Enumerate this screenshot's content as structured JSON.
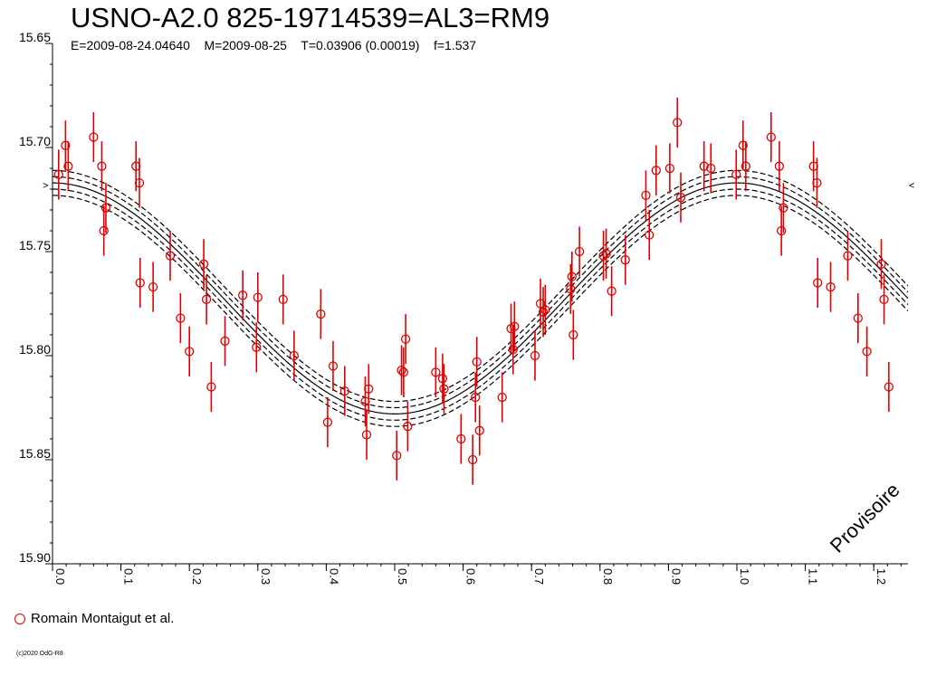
{
  "chart_data": {
    "type": "scatter",
    "title": "USNO-A2.0 825-19714539=AL3=RM9",
    "subtitle": "E=2009-08-24.04640    M=2009-08-25    T=0.03906 (0.00019)    f=1.537",
    "xlabel": "",
    "ylabel": "",
    "xlim": [
      0.0,
      1.25
    ],
    "ylim": [
      15.65,
      15.9
    ],
    "y_inverted": true,
    "x_ticks": [
      "0.0",
      "0.1",
      "0.2",
      "0.3",
      "0.4",
      "0.5",
      "0.6",
      "0.7",
      "0.8",
      "0.9",
      "1.0",
      "1.1",
      "1.2"
    ],
    "y_ticks": [
      "15.65",
      "15.70",
      "15.75",
      "15.80",
      "15.85",
      "15.90"
    ],
    "grid": false,
    "legend_position": "bottom-left",
    "annotation": "Provisoire",
    "fit_curve": {
      "mean": 15.7725,
      "amplitude": 0.0555,
      "max_phase": 1.0,
      "error_bands": [
        0.003,
        0.006
      ]
    },
    "series": [
      {
        "name": "Romain Montaigut et al.",
        "color": "#dd0000",
        "marker": "open-circle",
        "points": [
          [
            0.009,
            15.713,
            0.012
          ],
          [
            0.019,
            15.699,
            0.012
          ],
          [
            0.023,
            15.709,
            0.012
          ],
          [
            0.06,
            15.695,
            0.012
          ],
          [
            0.072,
            15.709,
            0.012
          ],
          [
            0.075,
            15.74,
            0.012
          ],
          [
            0.078,
            15.729,
            0.012
          ],
          [
            0.122,
            15.709,
            0.012
          ],
          [
            0.127,
            15.717,
            0.012
          ],
          [
            0.128,
            15.765,
            0.012
          ],
          [
            0.147,
            15.767,
            0.012
          ],
          [
            0.172,
            15.752,
            0.012
          ],
          [
            0.187,
            15.782,
            0.012
          ],
          [
            0.2,
            15.798,
            0.012
          ],
          [
            0.221,
            15.756,
            0.012
          ],
          [
            0.225,
            15.773,
            0.012
          ],
          [
            0.232,
            15.815,
            0.012
          ],
          [
            0.252,
            15.793,
            0.012
          ],
          [
            0.278,
            15.771,
            0.012
          ],
          [
            0.298,
            15.796,
            0.012
          ],
          [
            0.3,
            15.772,
            0.012
          ],
          [
            0.337,
            15.773,
            0.012
          ],
          [
            0.353,
            15.8,
            0.012
          ],
          [
            0.392,
            15.78,
            0.012
          ],
          [
            0.402,
            15.832,
            0.012
          ],
          [
            0.41,
            15.805,
            0.012
          ],
          [
            0.427,
            15.817,
            0.012
          ],
          [
            0.457,
            15.822,
            0.012
          ],
          [
            0.459,
            15.838,
            0.012
          ],
          [
            0.462,
            15.816,
            0.012
          ],
          [
            0.503,
            15.848,
            0.012
          ],
          [
            0.51,
            15.807,
            0.012
          ],
          [
            0.513,
            15.808,
            0.012
          ],
          [
            0.516,
            15.792,
            0.012
          ],
          [
            0.519,
            15.834,
            0.012
          ],
          [
            0.56,
            15.808,
            0.012
          ],
          [
            0.57,
            15.811,
            0.012
          ],
          [
            0.572,
            15.816,
            0.012
          ],
          [
            0.597,
            15.84,
            0.012
          ],
          [
            0.614,
            15.85,
            0.012
          ],
          [
            0.618,
            15.82,
            0.012
          ],
          [
            0.62,
            15.803,
            0.012
          ],
          [
            0.624,
            15.836,
            0.012
          ],
          [
            0.657,
            15.82,
            0.012
          ],
          [
            0.67,
            15.787,
            0.012
          ],
          [
            0.673,
            15.797,
            0.012
          ],
          [
            0.675,
            15.786,
            0.012
          ],
          [
            0.705,
            15.8,
            0.012
          ],
          [
            0.713,
            15.775,
            0.012
          ],
          [
            0.717,
            15.779,
            0.012
          ],
          [
            0.72,
            15.778,
            0.012
          ],
          [
            0.757,
            15.768,
            0.012
          ],
          [
            0.759,
            15.762,
            0.012
          ],
          [
            0.761,
            15.79,
            0.012
          ],
          [
            0.77,
            15.75,
            0.012
          ],
          [
            0.805,
            15.752,
            0.012
          ],
          [
            0.809,
            15.751,
            0.012
          ],
          [
            0.817,
            15.769,
            0.012
          ],
          [
            0.837,
            15.754,
            0.012
          ],
          [
            0.867,
            15.723,
            0.012
          ],
          [
            0.872,
            15.742,
            0.012
          ],
          [
            0.882,
            15.711,
            0.012
          ],
          [
            0.902,
            15.71,
            0.012
          ],
          [
            0.913,
            15.688,
            0.012
          ],
          [
            0.918,
            15.724,
            0.012
          ],
          [
            0.952,
            15.709,
            0.012
          ],
          [
            0.962,
            15.71,
            0.012
          ],
          [
            0.999,
            15.713,
            0.012
          ],
          [
            1.009,
            15.699,
            0.012
          ],
          [
            1.013,
            15.709,
            0.012
          ],
          [
            1.05,
            15.695,
            0.012
          ],
          [
            1.062,
            15.709,
            0.012
          ],
          [
            1.065,
            15.74,
            0.012
          ],
          [
            1.068,
            15.729,
            0.012
          ],
          [
            1.112,
            15.709,
            0.012
          ],
          [
            1.117,
            15.717,
            0.012
          ],
          [
            1.118,
            15.765,
            0.012
          ],
          [
            1.137,
            15.767,
            0.012
          ],
          [
            1.162,
            15.752,
            0.012
          ],
          [
            1.177,
            15.782,
            0.012
          ],
          [
            1.19,
            15.798,
            0.012
          ],
          [
            1.211,
            15.756,
            0.012
          ],
          [
            1.215,
            15.773,
            0.012
          ],
          [
            1.222,
            15.815,
            0.012
          ]
        ]
      }
    ]
  },
  "footer": {
    "copyright": "(c)2020 OdG-R8"
  }
}
